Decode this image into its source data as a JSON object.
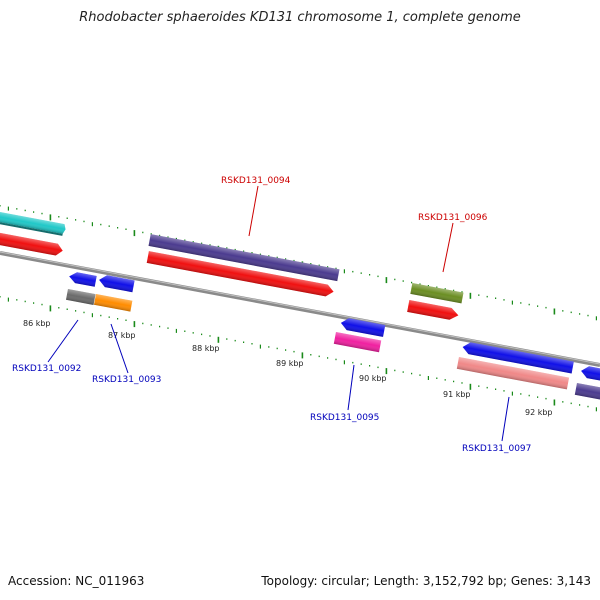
{
  "title": "Rhodobacter sphaeroides KD131 chromosome 1, complete genome",
  "footer": {
    "accession": "Accession: NC_011963",
    "summary": "Topology: circular; Length: 3,152,792 bp; Genes: 3,143"
  },
  "colors": {
    "upper_label": "#cc0000",
    "lower_label": "#0000bb",
    "tick": "#1a8a1a",
    "backbone": "#808080"
  },
  "scale_labels": [
    "86 kbp",
    "87 kbp",
    "88 kbp",
    "89 kbp",
    "90 kbp",
    "91 kbp",
    "92 kbp"
  ],
  "gene_labels": {
    "g0092": "RSKD131_0092",
    "g0093": "RSKD131_0093",
    "g0094": "RSKD131_0094",
    "g0095": "RSKD131_0095",
    "g0096": "RSKD131_0096",
    "g0097": "RSKD131_0097"
  }
}
